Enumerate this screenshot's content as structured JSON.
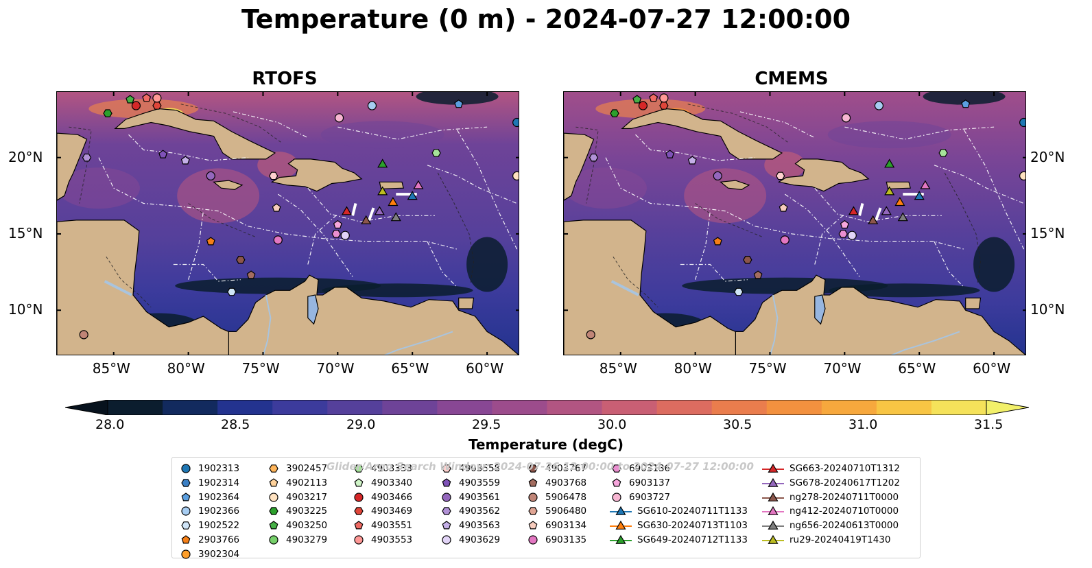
{
  "title": "Temperature (0 m) - 2024-07-27 12:00:00",
  "panels": [
    {
      "title": "RTOFS",
      "variant": "rtofs"
    },
    {
      "title": "CMEMS",
      "variant": "cmems"
    }
  ],
  "lon_ticks": [
    "85°W",
    "80°W",
    "75°W",
    "70°W",
    "65°W",
    "60°W"
  ],
  "lat_ticks": [
    "20°N",
    "15°N",
    "10°N"
  ],
  "colorbar": {
    "label": "Temperature (degC)",
    "ticks": [
      "28.0",
      "28.5",
      "29.0",
      "29.5",
      "30.0",
      "30.5",
      "31.0",
      "31.5"
    ],
    "min": 28.0,
    "max": 31.5,
    "extend": "both",
    "colors": [
      "#0b1d2e",
      "#122a5e",
      "#23338f",
      "#3c3b9c",
      "#55409b",
      "#6e4398",
      "#884794",
      "#9c4c8c",
      "#b25582",
      "#c95f74",
      "#dc6c60",
      "#ea7d4d",
      "#f3913f",
      "#f7a83d",
      "#f8c544",
      "#f5e25a"
    ],
    "under_color": "#07121d",
    "over_color": "#f2f06a"
  },
  "watermark": "Glider/Argo Search Window: 2024-07-26 12:00:00 to 2024-07-27 12:00:00",
  "legend": {
    "columns": [
      [
        {
          "label": "1902313",
          "marker": "circle",
          "color": "#1f77b4"
        },
        {
          "label": "1902314",
          "marker": "hexagon",
          "color": "#3b7fc4"
        },
        {
          "label": "1902364",
          "marker": "pentagon",
          "color": "#5b9fe0"
        },
        {
          "label": "1902366",
          "marker": "circle",
          "color": "#a7cdf2"
        },
        {
          "label": "1902522",
          "marker": "hexagon",
          "color": "#cfe4f7"
        },
        {
          "label": "2903766",
          "marker": "pentagon",
          "color": "#f57f17"
        },
        {
          "label": "3902304",
          "marker": "circle",
          "color": "#ff9f2a"
        }
      ],
      [
        {
          "label": "3902457",
          "marker": "hexagon",
          "color": "#ffb55a"
        },
        {
          "label": "4902113",
          "marker": "pentagon",
          "color": "#ffd29b"
        },
        {
          "label": "4903217",
          "marker": "circle",
          "color": "#ffe2c0"
        },
        {
          "label": "4903225",
          "marker": "hexagon",
          "color": "#2ca02c"
        },
        {
          "label": "4903250",
          "marker": "pentagon",
          "color": "#46b046"
        },
        {
          "label": "4903279",
          "marker": "circle",
          "color": "#76d06a"
        }
      ],
      [
        {
          "label": "4903333",
          "marker": "hexagon",
          "color": "#a6e39a"
        },
        {
          "label": "4903340",
          "marker": "pentagon",
          "color": "#d0f5c8"
        },
        {
          "label": "4903466",
          "marker": "circle",
          "color": "#d62728"
        },
        {
          "label": "4903469",
          "marker": "hexagon",
          "color": "#e0463a"
        },
        {
          "label": "4903551",
          "marker": "pentagon",
          "color": "#ef6a63"
        },
        {
          "label": "4903553",
          "marker": "circle",
          "color": "#ff9896"
        }
      ],
      [
        {
          "label": "4903558",
          "marker": "hexagon",
          "color": "#ffd1cf"
        },
        {
          "label": "4903559",
          "marker": "pentagon",
          "color": "#7f52b8"
        },
        {
          "label": "4903561",
          "marker": "circle",
          "color": "#9467bd"
        },
        {
          "label": "4903562",
          "marker": "hexagon",
          "color": "#b191d6"
        },
        {
          "label": "4903563",
          "marker": "pentagon",
          "color": "#c5b0e8"
        },
        {
          "label": "4903629",
          "marker": "circle",
          "color": "#e2d4f7"
        }
      ],
      [
        {
          "label": "4903767",
          "marker": "hexagon",
          "color": "#8c564b"
        },
        {
          "label": "4903768",
          "marker": "pentagon",
          "color": "#a36d60"
        },
        {
          "label": "5906478",
          "marker": "circle",
          "color": "#c08577"
        },
        {
          "label": "5906480",
          "marker": "hexagon",
          "color": "#e0a594"
        },
        {
          "label": "6903134",
          "marker": "pentagon",
          "color": "#f7ccbd"
        },
        {
          "label": "6903135",
          "marker": "circle",
          "color": "#e377c2"
        }
      ],
      [
        {
          "label": "6903136",
          "marker": "hexagon",
          "color": "#ea8fd0"
        },
        {
          "label": "6903137",
          "marker": "pentagon",
          "color": "#f7a6dd"
        },
        {
          "label": "6903727",
          "marker": "circle",
          "color": "#f7b6d2"
        },
        {
          "label": "SG610-20240711T1133",
          "marker": "triangle-line",
          "color": "#1f77b4"
        },
        {
          "label": "SG630-20240713T1103",
          "marker": "triangle-line",
          "color": "#ff7f0e"
        },
        {
          "label": "SG649-20240712T1133",
          "marker": "triangle-line",
          "color": "#2ca02c"
        }
      ],
      [
        {
          "label": "SG663-20240710T1312",
          "marker": "triangle-line",
          "color": "#d62728"
        },
        {
          "label": "SG678-20240617T1202",
          "marker": "triangle-line",
          "color": "#9467bd"
        },
        {
          "label": "ng278-20240711T0000",
          "marker": "triangle-line",
          "color": "#8c564b"
        },
        {
          "label": "ng412-20240710T0000",
          "marker": "triangle-line",
          "color": "#e377c2"
        },
        {
          "label": "ng656-20240613T0000",
          "marker": "triangle-line",
          "color": "#7f7f7f"
        },
        {
          "label": "ru29-20240419T1430",
          "marker": "triangle-line",
          "color": "#bcbd22"
        }
      ]
    ]
  },
  "map_markers": [
    {
      "id": "1902313",
      "marker": "circle",
      "color": "#1f77b4",
      "lon": -58.0,
      "lat": 22.3
    },
    {
      "id": "1902364",
      "marker": "pentagon",
      "color": "#5b9fe0",
      "lon": -61.9,
      "lat": 23.5
    },
    {
      "id": "1902366",
      "marker": "circle",
      "color": "#a7cdf2",
      "lon": -67.7,
      "lat": 23.4
    },
    {
      "id": "1902522",
      "marker": "hexagon",
      "color": "#cfe4f7",
      "lon": -77.1,
      "lat": 11.2
    },
    {
      "id": "2903766",
      "marker": "pentagon",
      "color": "#f57f17",
      "lon": -78.5,
      "lat": 14.5
    },
    {
      "id": "4903217",
      "marker": "circle",
      "color": "#ffe2c0",
      "lon": -58.0,
      "lat": 18.8
    },
    {
      "id": "4903225",
      "marker": "hexagon",
      "color": "#2ca02c",
      "lon": -85.4,
      "lat": 22.9
    },
    {
      "id": "4903250",
      "marker": "pentagon",
      "color": "#46b046",
      "lon": -83.9,
      "lat": 23.8
    },
    {
      "id": "4903333",
      "marker": "hexagon",
      "color": "#a6e39a",
      "lon": -63.4,
      "lat": 20.3
    },
    {
      "id": "4903466",
      "marker": "circle",
      "color": "#d62728",
      "lon": -83.5,
      "lat": 23.4
    },
    {
      "id": "4903469",
      "marker": "hexagon",
      "color": "#e0463a",
      "lon": -82.1,
      "lat": 23.4
    },
    {
      "id": "4903551",
      "marker": "pentagon",
      "color": "#ef6a63",
      "lon": -82.8,
      "lat": 23.9
    },
    {
      "id": "4903553",
      "marker": "circle",
      "color": "#ff9896",
      "lon": -82.1,
      "lat": 23.9
    },
    {
      "id": "4903558",
      "marker": "hexagon",
      "color": "#ffd1cf",
      "lon": -74.3,
      "lat": 18.8
    },
    {
      "id": "4903559",
      "marker": "pentagon",
      "color": "#7f52b8",
      "lon": -81.7,
      "lat": 20.2
    },
    {
      "id": "4903561",
      "marker": "circle",
      "color": "#9467bd",
      "lon": -78.5,
      "lat": 18.8
    },
    {
      "id": "4903562",
      "marker": "hexagon",
      "color": "#b191d6",
      "lon": -86.8,
      "lat": 20.0
    },
    {
      "id": "4903563",
      "marker": "pentagon",
      "color": "#c5b0e8",
      "lon": -80.2,
      "lat": 19.8
    },
    {
      "id": "4903629",
      "marker": "circle",
      "color": "#e2d4f7",
      "lon": -69.5,
      "lat": 14.9
    },
    {
      "id": "4903767",
      "marker": "hexagon",
      "color": "#8c564b",
      "lon": -76.5,
      "lat": 13.3
    },
    {
      "id": "4903768",
      "marker": "pentagon",
      "color": "#a36d60",
      "lon": -75.8,
      "lat": 12.3
    },
    {
      "id": "5906478",
      "marker": "circle",
      "color": "#c08577",
      "lon": -87.0,
      "lat": 8.4
    },
    {
      "id": "6903134",
      "marker": "pentagon",
      "color": "#f7ccbd",
      "lon": -74.1,
      "lat": 16.7
    },
    {
      "id": "6903135",
      "marker": "circle",
      "color": "#e377c2",
      "lon": -74.0,
      "lat": 14.6
    },
    {
      "id": "6903136",
      "marker": "hexagon",
      "color": "#ea8fd0",
      "lon": -70.1,
      "lat": 15.0
    },
    {
      "id": "6903137",
      "marker": "pentagon",
      "color": "#f7a6dd",
      "lon": -70.0,
      "lat": 15.6
    },
    {
      "id": "6903727",
      "marker": "circle",
      "color": "#f7b6d2",
      "lon": -69.9,
      "lat": 22.6
    },
    {
      "id": "SG610-20240711T1133",
      "marker": "triangle",
      "color": "#1f77b4",
      "lon": -65.0,
      "lat": 17.5
    },
    {
      "id": "SG630-20240713T1103",
      "marker": "triangle",
      "color": "#ff7f0e",
      "lon": -66.3,
      "lat": 17.1
    },
    {
      "id": "SG649-20240712T1133",
      "marker": "triangle",
      "color": "#2ca02c",
      "lon": -67.0,
      "lat": 19.6
    },
    {
      "id": "SG663-20240710T1312",
      "marker": "triangle",
      "color": "#d62728",
      "lon": -69.4,
      "lat": 16.5
    },
    {
      "id": "SG678-20240617T1202",
      "marker": "triangle",
      "color": "#9467bd",
      "lon": -67.2,
      "lat": 16.5
    },
    {
      "id": "ng278-20240711T0000",
      "marker": "triangle",
      "color": "#8c564b",
      "lon": -68.1,
      "lat": 15.9
    },
    {
      "id": "ng412-20240710T0000",
      "marker": "triangle",
      "color": "#e377c2",
      "lon": -64.6,
      "lat": 18.2
    },
    {
      "id": "ng656-20240613T0000",
      "marker": "triangle",
      "color": "#7f7f7f",
      "lon": -66.1,
      "lat": 16.1
    },
    {
      "id": "ru29-20240419T1430",
      "marker": "triangle",
      "color": "#bcbd22",
      "lon": -67.0,
      "lat": 17.8
    }
  ]
}
